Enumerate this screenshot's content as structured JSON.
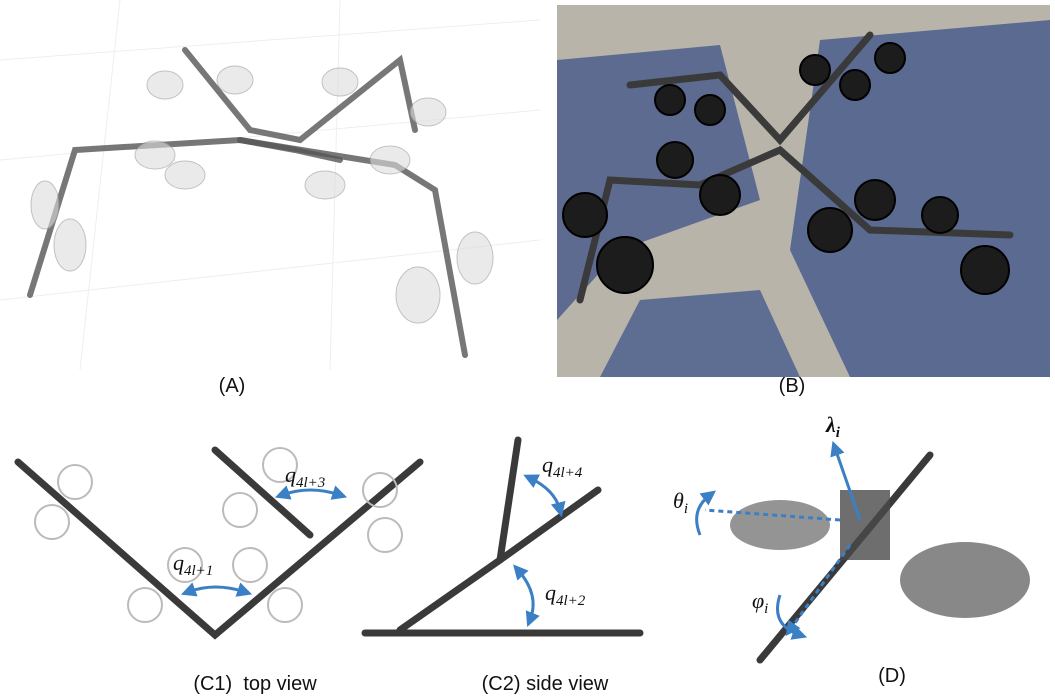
{
  "panels": [
    {
      "label": "(A)"
    },
    {
      "label": "(B)"
    },
    {
      "label": "(C1)  top view"
    },
    {
      "label": "(C2) side view"
    },
    {
      "label": "(D)"
    }
  ],
  "joint_labels": [
    {
      "base": "q",
      "sub": "4l+3"
    },
    {
      "base": "q",
      "sub": "4l+1"
    },
    {
      "base": "q",
      "sub": "4l+4"
    },
    {
      "base": "q",
      "sub": "4l+2"
    }
  ],
  "axis_labels": [
    {
      "base": "λ",
      "sub": "i"
    },
    {
      "base": "θ",
      "sub": "i"
    },
    {
      "base": "φ",
      "sub": "i"
    }
  ]
}
